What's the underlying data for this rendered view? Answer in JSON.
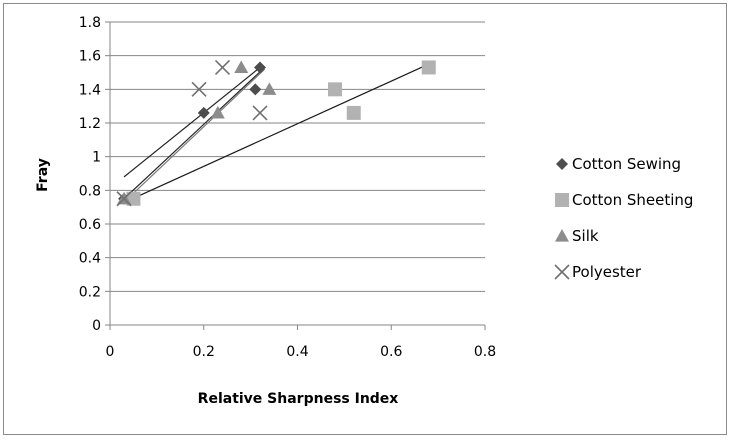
{
  "chart_data": {
    "type": "scatter",
    "title": "",
    "xlabel": "Relative Sharpness Index",
    "ylabel": "Fray",
    "xlim": [
      0,
      0.8
    ],
    "ylim": [
      0,
      1.8
    ],
    "xticks": [
      "0",
      "0.2",
      "0.4",
      "0.6",
      "0.8"
    ],
    "yticks": [
      "0",
      "0.2",
      "0.4",
      "0.6",
      "0.8",
      "1",
      "1.2",
      "1.4",
      "1.6",
      "1.8"
    ],
    "grid": "horizontal",
    "legend_position": "right",
    "series": [
      {
        "name": "Cotton Sewing",
        "marker": "diamond",
        "color": "#4d4d4d",
        "points": [
          [
            0.03,
            0.75
          ],
          [
            0.2,
            1.26
          ],
          [
            0.31,
            1.4
          ],
          [
            0.32,
            1.53
          ]
        ],
        "trendline": [
          [
            0.03,
            0.75
          ],
          [
            0.33,
            1.53
          ]
        ]
      },
      {
        "name": "Cotton Sheeting",
        "marker": "square",
        "color": "#b2b2b2",
        "points": [
          [
            0.05,
            0.75
          ],
          [
            0.48,
            1.4
          ],
          [
            0.52,
            1.26
          ],
          [
            0.68,
            1.53
          ]
        ],
        "trendline": [
          [
            0.04,
            0.74
          ],
          [
            0.68,
            1.55
          ]
        ]
      },
      {
        "name": "Silk",
        "marker": "triangle",
        "color": "#8c8c8c",
        "points": [
          [
            0.03,
            0.75
          ],
          [
            0.23,
            1.26
          ],
          [
            0.28,
            1.53
          ],
          [
            0.34,
            1.4
          ]
        ],
        "trendline": [
          [
            0.03,
            0.73
          ],
          [
            0.33,
            1.52
          ]
        ]
      },
      {
        "name": "Polyester",
        "marker": "x",
        "color": "#707070",
        "points": [
          [
            0.03,
            0.75
          ],
          [
            0.19,
            1.4
          ],
          [
            0.24,
            1.53
          ],
          [
            0.32,
            1.26
          ]
        ],
        "trendline": [
          [
            0.03,
            0.88
          ],
          [
            0.32,
            1.53
          ]
        ]
      }
    ]
  }
}
